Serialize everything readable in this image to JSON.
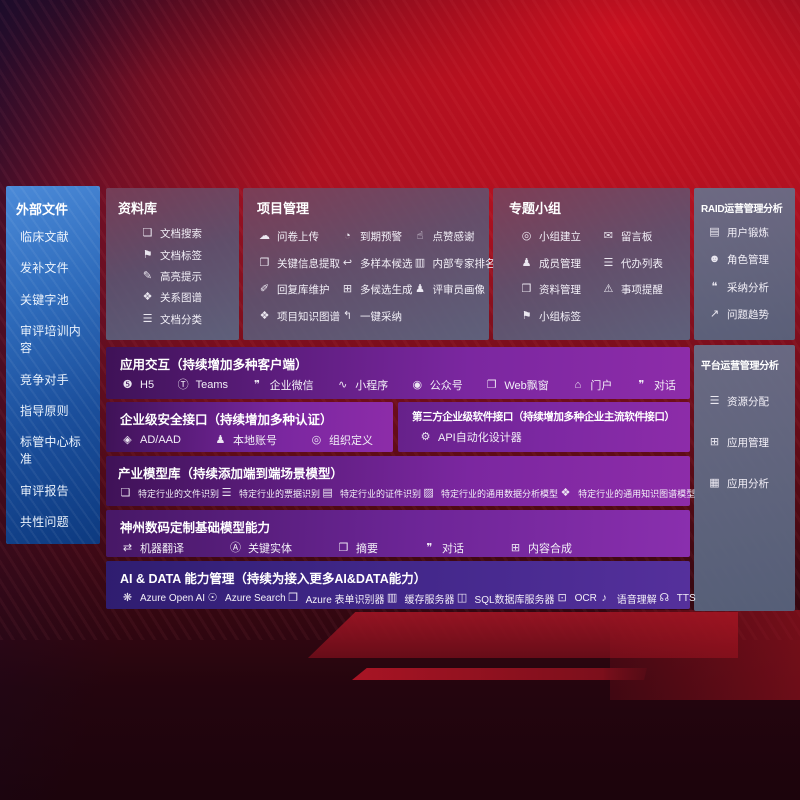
{
  "colors": {
    "background_red": "#a31121",
    "sidebar_blue": "#2f6cbc",
    "panel_slate": "#5c6886",
    "row_purple": "#7b27a0",
    "row_indigo": "#3f2687"
  },
  "sidebar": {
    "title": "外部文件",
    "items": [
      "临床文献",
      "发补文件",
      "关键字池",
      "审评培训内容",
      "竞争对手",
      "指导原则",
      "标管中心标准",
      "审评报告",
      "共性问题"
    ]
  },
  "panels": {
    "repository": {
      "title": "资料库",
      "items": [
        {
          "label": "文档搜索",
          "icon": "doc-search"
        },
        {
          "label": "文档标签",
          "icon": "doc-tag"
        },
        {
          "label": "高亮提示",
          "icon": "highlight"
        },
        {
          "label": "关系图谱",
          "icon": "relation-graph"
        },
        {
          "label": "文档分类",
          "icon": "doc-classify"
        }
      ]
    },
    "project": {
      "title": "项目管理",
      "items": [
        {
          "label": "问卷上传",
          "icon": "cloud-upload"
        },
        {
          "label": "到期预警",
          "icon": "due-warning"
        },
        {
          "label": "点赞感谢",
          "icon": "thumbs-up"
        },
        {
          "label": "关键信息提取",
          "icon": "key-info"
        },
        {
          "label": "多样本候选",
          "icon": "multi-sample"
        },
        {
          "label": "内部专家排名",
          "icon": "expert-ranking"
        },
        {
          "label": "回复库维护",
          "icon": "reply-maintain"
        },
        {
          "label": "多候选生成",
          "icon": "multi-generate"
        },
        {
          "label": "评审员画像",
          "icon": "reviewer-profile"
        },
        {
          "label": "项目知识图谱",
          "icon": "knowledge-graph"
        },
        {
          "label": "一键采纳",
          "icon": "one-click-adopt"
        }
      ]
    },
    "topic": {
      "title": "专题小组",
      "items": [
        {
          "label": "小组建立",
          "icon": "group-create"
        },
        {
          "label": "留言板",
          "icon": "message-board"
        },
        {
          "label": "成员管理",
          "icon": "member-manage"
        },
        {
          "label": "代办列表",
          "icon": "todo-list"
        },
        {
          "label": "资料管理",
          "icon": "material-manage"
        },
        {
          "label": "事项提醒",
          "icon": "reminder"
        },
        {
          "label": "小组标签",
          "icon": "group-tag"
        }
      ]
    },
    "raid": {
      "title": "RAID运营管理分析",
      "items": [
        {
          "label": "用户锻炼",
          "icon": "user-card"
        },
        {
          "label": "角色管理",
          "icon": "role-manage"
        },
        {
          "label": "采纳分析",
          "icon": "adopt-analysis"
        },
        {
          "label": "问题趋势",
          "icon": "trend"
        }
      ]
    },
    "platform": {
      "title": "平台运营管理分析",
      "items": [
        {
          "label": "资源分配",
          "icon": "resource-alloc"
        },
        {
          "label": "应用管理",
          "icon": "app-manage"
        },
        {
          "label": "应用分析",
          "icon": "app-analysis"
        }
      ]
    }
  },
  "rows": {
    "interaction": {
      "title": "应用交互（持续增加多种客户端）",
      "items": [
        {
          "label": "H5",
          "icon": "h5"
        },
        {
          "label": "Teams",
          "icon": "teams"
        },
        {
          "label": "企业微信",
          "icon": "wechat-work"
        },
        {
          "label": "小程序",
          "icon": "mini-program"
        },
        {
          "label": "公众号",
          "icon": "official-account"
        },
        {
          "label": "Web飘窗",
          "icon": "web-popup"
        },
        {
          "label": "门户",
          "icon": "portal"
        },
        {
          "label": "对话",
          "icon": "chat"
        }
      ]
    },
    "security": {
      "title": "企业级安全接口（持续增加多种认证）",
      "items": [
        {
          "label": "AD/AAD",
          "icon": "ad-aad"
        },
        {
          "label": "本地账号",
          "icon": "local-account"
        },
        {
          "label": "组织定义",
          "icon": "org-define"
        }
      ]
    },
    "thirdparty": {
      "title": "第三方企业级软件接口（持续增加多种企业主流软件接口）",
      "items": [
        {
          "label": "API自动化设计器",
          "icon": "api-designer"
        }
      ]
    },
    "industry": {
      "title": "产业模型库（持续添加端到端场景模型）",
      "items": [
        {
          "label": "特定行业的文件识别",
          "icon": "file-recog"
        },
        {
          "label": "特定行业的票据识别",
          "icon": "invoice-recog"
        },
        {
          "label": "特定行业的证件识别",
          "icon": "id-recog"
        },
        {
          "label": "特定行业的通用数据分析模型",
          "icon": "data-model"
        },
        {
          "label": "特定行业的通用知识图谱模型",
          "icon": "kg-model"
        }
      ]
    },
    "dcmodels": {
      "title": "神州数码定制基础模型能力",
      "items": [
        {
          "label": "机器翻译",
          "icon": "translate"
        },
        {
          "label": "关键实体",
          "icon": "entity"
        },
        {
          "label": "摘要",
          "icon": "summary"
        },
        {
          "label": "对话",
          "icon": "dialog"
        },
        {
          "label": "内容合成",
          "icon": "compose"
        }
      ]
    },
    "aidata": {
      "title": "AI & DATA 能力管理（持续为接入更多AI&DATA能力）",
      "items": [
        {
          "label": "Azure Open AI",
          "icon": "openai"
        },
        {
          "label": "Azure Search",
          "icon": "search"
        },
        {
          "label": "Azure 表单识别器",
          "icon": "form-recog"
        },
        {
          "label": "缓存服务器",
          "icon": "cache-server"
        },
        {
          "label": "SQL数据库服务器",
          "icon": "sql-server"
        },
        {
          "label": "OCR",
          "icon": "ocr"
        },
        {
          "label": "语音理解",
          "icon": "speech"
        },
        {
          "label": "TTS",
          "icon": "tts"
        }
      ]
    }
  },
  "icon_glyphs": {
    "doc-search": "❏",
    "doc-tag": "⚑",
    "highlight": "✎",
    "relation-graph": "❖",
    "doc-classify": "☰",
    "cloud-upload": "☁",
    "due-warning": "◔",
    "thumbs-up": "☝",
    "key-info": "❐",
    "multi-sample": "↩",
    "expert-ranking": "▥",
    "reply-maintain": "✐",
    "multi-generate": "⊞",
    "reviewer-profile": "♟",
    "knowledge-graph": "❖",
    "one-click-adopt": "↰",
    "group-create": "◎",
    "message-board": "✉",
    "member-manage": "♟",
    "todo-list": "☰",
    "material-manage": "❒",
    "reminder": "⚠",
    "group-tag": "⚑",
    "user-card": "▤",
    "role-manage": "☻",
    "adopt-analysis": "❝",
    "trend": "↗",
    "resource-alloc": "☰",
    "app-manage": "⊞",
    "app-analysis": "▦",
    "h5": "❺",
    "teams": "Ⓣ",
    "wechat-work": "❞",
    "mini-program": "∿",
    "official-account": "◉",
    "web-popup": "❐",
    "portal": "⌂",
    "chat": "❞",
    "ad-aad": "◈",
    "local-account": "♟",
    "org-define": "◎",
    "api-designer": "⚙",
    "file-recog": "❏",
    "invoice-recog": "☰",
    "id-recog": "▤",
    "data-model": "▨",
    "kg-model": "❖",
    "translate": "⇄",
    "entity": "Ⓐ",
    "summary": "❐",
    "dialog": "❞",
    "compose": "⊞",
    "openai": "❋",
    "search": "☉",
    "form-recog": "❒",
    "cache-server": "▥",
    "sql-server": "◫",
    "ocr": "⊡",
    "speech": "♪",
    "tts": "☊"
  }
}
